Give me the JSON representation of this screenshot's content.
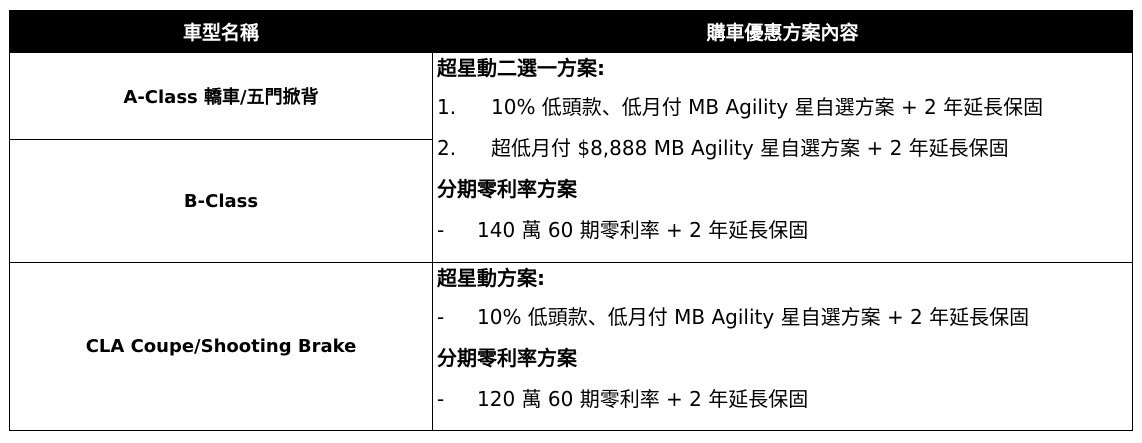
{
  "header": {
    "col1": "車型名稱",
    "col2": "購車優惠方案內容"
  },
  "rows": [
    {
      "model": "A-Class 轎車/五門掀背"
    },
    {
      "model": "B-Class"
    },
    {
      "model": "CLA Coupe/Shooting Brake"
    }
  ],
  "plans": [
    {
      "title": "超星動二選一方案:",
      "items": [
        {
          "marker": "1.",
          "text": "10% 低頭款、低月付 MB Agility 星自選方案 + 2 年延長保固"
        },
        {
          "marker": "2.",
          "text": "超低月付 $8,888 MB Agility 星自選方案  + 2 年延長保固"
        }
      ],
      "subtitle": "分期零利率方案",
      "sub_items": [
        {
          "marker": "-",
          "text": "140 萬 60 期零利率 + 2 年延長保固"
        }
      ]
    },
    {
      "title": "超星動方案:",
      "items": [
        {
          "marker": "-",
          "text": "10% 低頭款、低月付 MB Agility 星自選方案 + 2 年延長保固"
        }
      ],
      "subtitle": "分期零利率方案",
      "sub_items": [
        {
          "marker": "-",
          "text": "120 萬 60 期零利率 + 2 年延長保固"
        }
      ]
    }
  ]
}
